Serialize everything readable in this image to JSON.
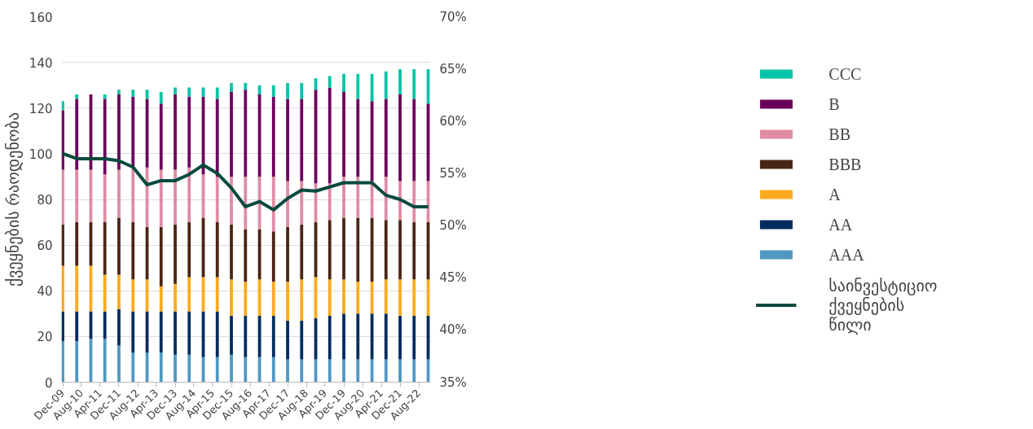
{
  "chart_data": {
    "type": "bar",
    "stacked": true,
    "ylabel": "ქვეყნების რაოდენობა",
    "x": [
      "2009-12",
      "2010-06",
      "2010-12",
      "2011-06",
      "2011-12",
      "2012-06",
      "2012-12",
      "2013-06",
      "2013-12",
      "2014-06",
      "2014-12",
      "2015-06",
      "2015-12",
      "2016-06",
      "2016-12",
      "2017-06",
      "2017-12",
      "2018-06",
      "2018-12",
      "2019-06",
      "2019-12",
      "2020-06",
      "2020-12",
      "2021-06",
      "2021-12",
      "2022-06",
      "2022-12"
    ],
    "xlim": [
      "2009-11-15",
      "2023-01-01"
    ],
    "xticks": [
      {
        "value": "2009-12",
        "label": "Dec-09"
      },
      {
        "value": "2010-08",
        "label": "Aug-10"
      },
      {
        "value": "2011-04",
        "label": "Apr-11"
      },
      {
        "value": "2011-12",
        "label": "Dec-11"
      },
      {
        "value": "2012-08",
        "label": "Aug-12"
      },
      {
        "value": "2013-04",
        "label": "Apr-13"
      },
      {
        "value": "2013-12",
        "label": "Dec-13"
      },
      {
        "value": "2014-08",
        "label": "Aug-14"
      },
      {
        "value": "2015-04",
        "label": "Apr-15"
      },
      {
        "value": "2015-12",
        "label": "Dec-15"
      },
      {
        "value": "2016-08",
        "label": "Aug-16"
      },
      {
        "value": "2017-04",
        "label": "Apr-17"
      },
      {
        "value": "2017-12",
        "label": "Dec-17"
      },
      {
        "value": "2018-08",
        "label": "Aug-18"
      },
      {
        "value": "2019-04",
        "label": "Apr-19"
      },
      {
        "value": "2019-12",
        "label": "Dec-19"
      },
      {
        "value": "2020-08",
        "label": "Aug-20"
      },
      {
        "value": "2021-04",
        "label": "Apr-21"
      },
      {
        "value": "2021-12",
        "label": "Dec-21"
      },
      {
        "value": "2022-08",
        "label": "Aug-22"
      }
    ],
    "ylim": [
      0,
      160
    ],
    "yticks": [
      0,
      20,
      40,
      60,
      80,
      100,
      120,
      140,
      160
    ],
    "y2lim": [
      35,
      70
    ],
    "y2ticks": [
      {
        "value": 35,
        "label": "35%"
      },
      {
        "value": 40,
        "label": "40%"
      },
      {
        "value": 45,
        "label": "45%"
      },
      {
        "value": 50,
        "label": "50%"
      },
      {
        "value": 55,
        "label": "55%"
      },
      {
        "value": 60,
        "label": "60%"
      },
      {
        "value": 65,
        "label": "65%"
      },
      {
        "value": 70,
        "label": "70%"
      }
    ],
    "grid": "y",
    "legend": "right",
    "series": [
      {
        "name": "AAA",
        "color": "#4e98c2",
        "values": [
          18,
          18,
          19,
          19,
          16,
          13,
          13,
          13,
          12,
          12,
          11,
          11,
          12,
          11,
          11,
          11,
          10,
          10,
          10,
          10,
          10,
          10,
          10,
          10,
          10,
          10,
          10
        ]
      },
      {
        "name": "AA",
        "color": "#002b5c",
        "values": [
          13,
          13,
          12,
          12,
          16,
          18,
          18,
          18,
          19,
          19,
          20,
          20,
          17,
          18,
          18,
          18,
          17,
          17,
          18,
          19,
          20,
          20,
          20,
          20,
          19,
          19,
          19
        ]
      },
      {
        "name": "A",
        "color": "#fcaa1d",
        "values": [
          20,
          20,
          20,
          16,
          15,
          14,
          14,
          11,
          12,
          15,
          15,
          15,
          16,
          15,
          16,
          15,
          17,
          18,
          18,
          16,
          15,
          14,
          14,
          15,
          16,
          16,
          16
        ]
      },
      {
        "name": "BBB",
        "color": "#4a2515",
        "values": [
          18,
          19,
          19,
          23,
          25,
          25,
          23,
          26,
          26,
          24,
          26,
          24,
          24,
          23,
          22,
          22,
          24,
          24,
          24,
          26,
          27,
          28,
          28,
          26,
          26,
          25,
          25
        ]
      },
      {
        "name": "BB",
        "color": "#df8ba3",
        "values": [
          24,
          23,
          23,
          21,
          21,
          24,
          26,
          25,
          24,
          24,
          19,
          20,
          21,
          23,
          23,
          24,
          20,
          19,
          17,
          16,
          18,
          18,
          16,
          19,
          17,
          18,
          18
        ]
      },
      {
        "name": "B",
        "color": "#6b005b",
        "values": [
          26,
          31,
          33,
          33,
          33,
          31,
          30,
          29,
          33,
          31,
          34,
          34,
          37,
          38,
          36,
          35,
          36,
          36,
          41,
          42,
          37,
          34,
          35,
          34,
          38,
          36,
          34
        ]
      },
      {
        "name": "CCC",
        "color": "#00c4a5",
        "values": [
          4,
          2,
          0,
          2,
          2,
          3,
          4,
          5,
          3,
          4,
          4,
          5,
          4,
          3,
          4,
          5,
          7,
          7,
          5,
          5,
          8,
          11,
          12,
          12,
          11,
          13,
          15
        ]
      },
      {
        "name": "საინვესტიციო ქვეყნების წილი",
        "type": "line",
        "axis": "y2",
        "color": "#064a3e",
        "line_style": "solid",
        "marker": "none",
        "values": [
          56.9,
          56.4,
          56.4,
          56.4,
          56.2,
          55.6,
          53.9,
          54.3,
          54.3,
          54.9,
          55.8,
          55.0,
          53.6,
          51.8,
          52.3,
          51.5,
          52.6,
          53.4,
          53.3,
          53.7,
          54.1,
          54.1,
          54.1,
          52.9,
          52.5,
          51.8,
          51.8
        ]
      }
    ]
  }
}
